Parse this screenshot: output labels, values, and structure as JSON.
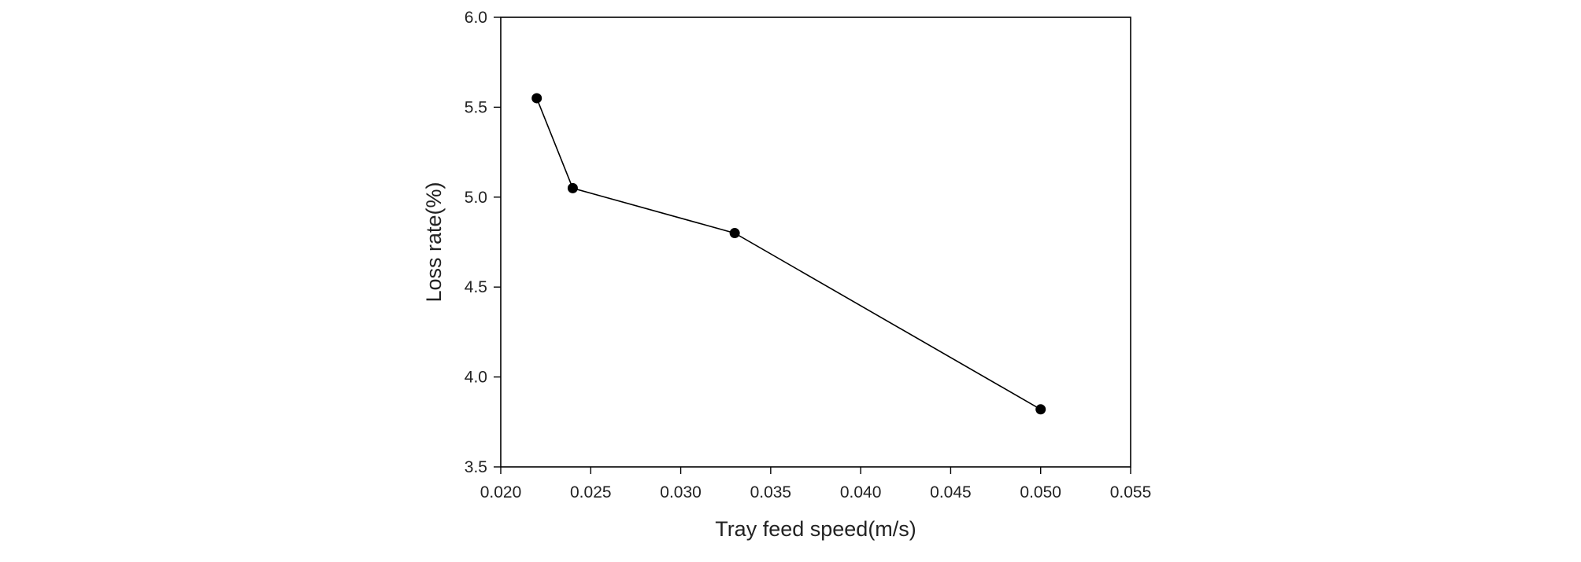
{
  "chart_data": {
    "type": "line",
    "title": "",
    "xlabel": "Tray feed speed(m/s)",
    "ylabel": "Loss rate(%)",
    "xlim": [
      0.02,
      0.055
    ],
    "ylim": [
      3.5,
      6.0
    ],
    "x_ticks": [
      "0.020",
      "0.025",
      "0.030",
      "0.035",
      "0.040",
      "0.045",
      "0.050",
      "0.055"
    ],
    "y_ticks": [
      "3.5",
      "4.0",
      "4.5",
      "5.0",
      "5.5",
      "6.0"
    ],
    "grid": false,
    "legend": "none",
    "series": [
      {
        "x": [
          0.022,
          0.024,
          0.033,
          0.05
        ],
        "y": [
          5.55,
          5.05,
          4.8,
          3.82
        ],
        "color": "#000000",
        "marker": "circle"
      }
    ]
  }
}
